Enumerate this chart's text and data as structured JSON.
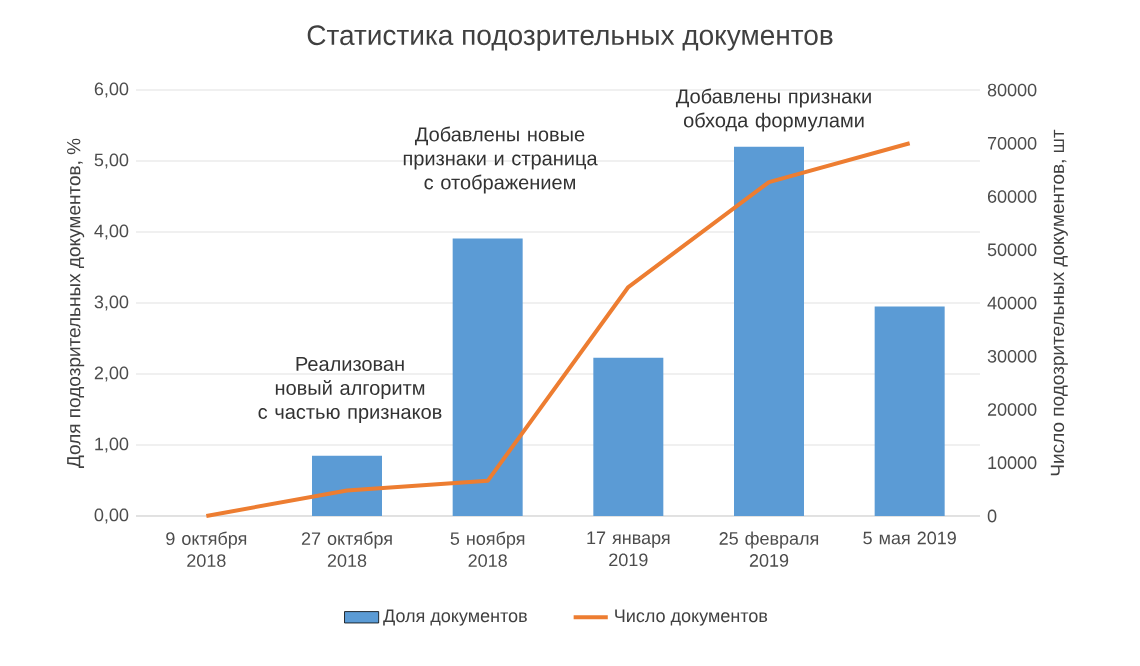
{
  "chart_data": {
    "type": "bar",
    "title": "Статистика подозрительных документов",
    "categories": [
      "9 октября 2018",
      "27 октября 2018",
      "5 ноября 2018",
      "17 января 2019",
      "25 февраля 2019",
      "5 мая 2019"
    ],
    "series": [
      {
        "name": "Доля документов",
        "color": "#5b9bd5",
        "values": [
          0,
          0.85,
          3.91,
          2.23,
          5.2,
          2.95
        ]
      },
      {
        "name": "Число документов",
        "type": "line",
        "axis": "y2",
        "color": "#ed7d31",
        "values": [
          0,
          4800,
          6600,
          43000,
          62700,
          70000
        ]
      }
    ],
    "ylabel": "Доля подозрительных документов, %",
    "y2label": "Число подозрительных документов, шт",
    "ylim": [
      0,
      6
    ],
    "yticks": [
      {
        "value": 0,
        "label": "0,00"
      },
      {
        "value": 1,
        "label": "1,00"
      },
      {
        "value": 2,
        "label": "2,00"
      },
      {
        "value": 3,
        "label": "3,00"
      },
      {
        "value": 4,
        "label": "4,00"
      },
      {
        "value": 5,
        "label": "5,00"
      },
      {
        "value": 6,
        "label": "6,00"
      }
    ],
    "y2lim": [
      0,
      80000
    ],
    "y2ticks": [
      0,
      10000,
      20000,
      30000,
      40000,
      50000,
      60000,
      70000,
      80000
    ],
    "grid": "y",
    "legend": "bottom",
    "marker": "none",
    "annotations": [
      "Реализован новый алгоритм с частью признаков",
      "Добавлены новые признаки и страница с отображением",
      "Добавлены признаки обхода формулами"
    ]
  }
}
